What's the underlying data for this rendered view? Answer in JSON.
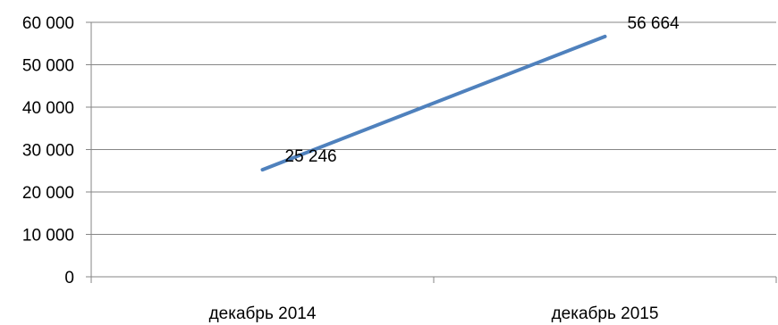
{
  "chart_data": {
    "type": "line",
    "title": "",
    "xlabel": "",
    "ylabel": "",
    "categories": [
      "декабрь 2014",
      "декабрь 2015"
    ],
    "series": [
      {
        "values": [
          25246,
          56664
        ],
        "color": "#4f81bd"
      }
    ],
    "data_labels": [
      "25 246",
      "56 664"
    ],
    "ylim": [
      0,
      60000
    ],
    "yticks": [
      0,
      10000,
      20000,
      30000,
      40000,
      50000,
      60000
    ],
    "ytick_labels": [
      "0",
      "10 000",
      "20 000",
      "30 000",
      "40 000",
      "50 000",
      "60 000"
    ],
    "grid": true,
    "gridline_color": "#868686",
    "legend": "none"
  }
}
